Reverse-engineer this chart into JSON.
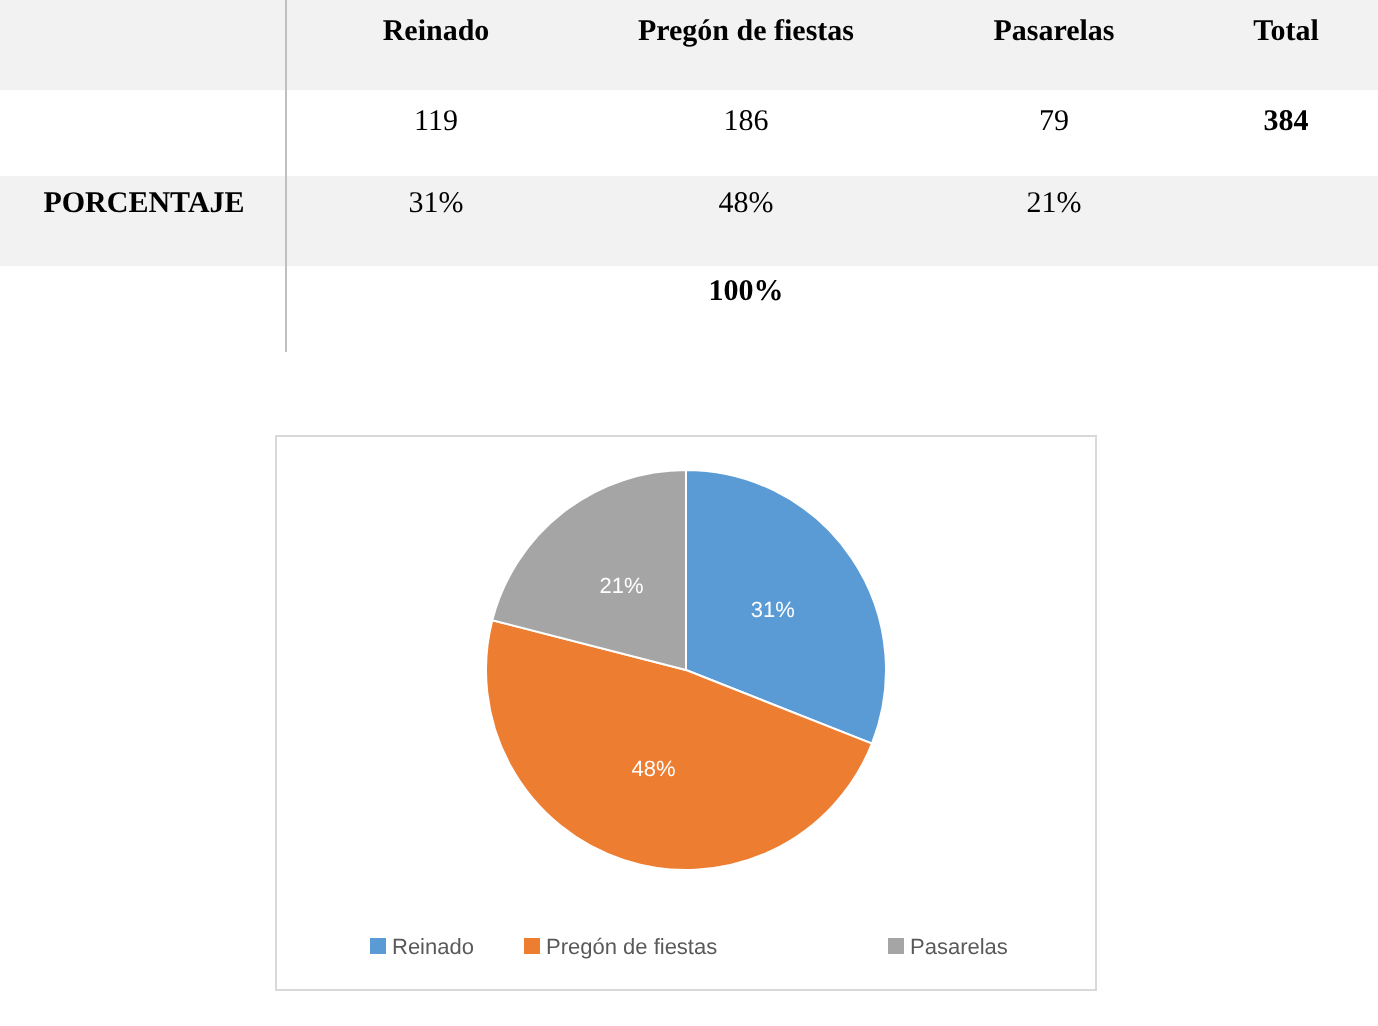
{
  "chart_data": [
    {
      "type": "other",
      "categories": [
        "Reinado",
        "Pregón de fiestas",
        "Pasarelas",
        "Total"
      ],
      "values": [
        119,
        186,
        79,
        384
      ],
      "data_labels": true,
      "annotations": [
        "PORCENTAJE",
        "31%",
        "48%",
        "21%",
        "100%"
      ]
    },
    {
      "type": "pie",
      "categories": [
        "Reinado",
        "Pregón de fiestas",
        "Pasarelas"
      ],
      "values": [
        31,
        48,
        21
      ],
      "colors": [
        "#5b9bd5",
        "#ed7d31",
        "#a5a5a5"
      ],
      "value_labels": [
        "31%",
        "48%",
        "21%"
      ],
      "legend": "bottom"
    }
  ]
}
